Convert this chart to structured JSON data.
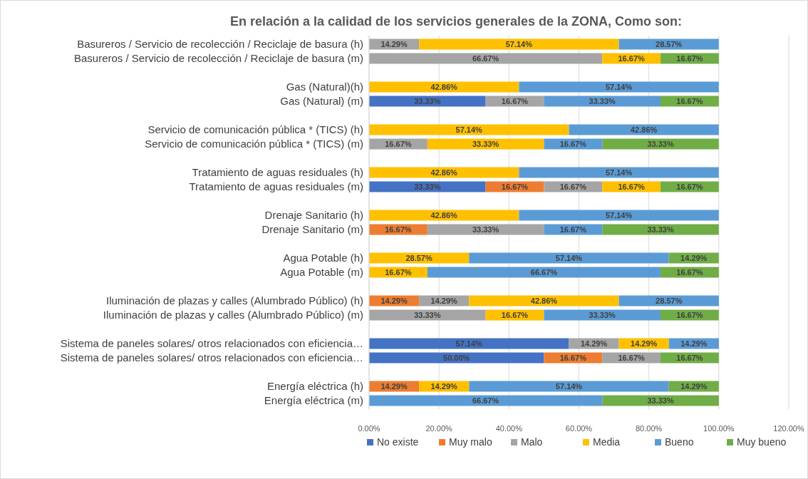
{
  "chart_data": {
    "type": "bar",
    "orientation": "horizontal",
    "stacked": true,
    "title": "En relación a la calidad de los servicios generales de la ZONA, Como son:",
    "categories": [
      "Basureros / Servicio de recolección / Reciclaje de basura (h)",
      "Basureros / Servicio de recolección / Reciclaje de basura (m)",
      null,
      "Gas (Natural)(h)",
      "Gas (Natural) (m)",
      null,
      "Servicio de comunicación pública  * (TICS) (h)",
      "Servicio de comunicación pública  * (TICS) (m)",
      null,
      "Tratamiento de aguas residuales (h)",
      "Tratamiento de aguas residuales (m)",
      null,
      "Drenaje Sanitario (h)",
      "Drenaje Sanitario (m)",
      null,
      "Agua Potable (h)",
      "Agua Potable (m)",
      null,
      "Iluminación de plazas y calles (Alumbrado Público) (h)",
      "Iluminación de plazas y calles (Alumbrado Público) (m)",
      null,
      "Sistema  de paneles solares/ otros relacionados con eficiencia…",
      "Sistema  de paneles solares/ otros relacionados con eficiencia…",
      null,
      "Energía eléctrica (h)",
      "Energía eléctrica (m)"
    ],
    "series": [
      {
        "name": "No existe",
        "color": "#4472c4",
        "values": [
          null,
          null,
          null,
          null,
          33.33,
          null,
          null,
          null,
          null,
          null,
          33.33,
          null,
          null,
          null,
          null,
          null,
          null,
          null,
          null,
          null,
          null,
          57.14,
          50.0,
          null,
          null,
          null
        ],
        "value_labels": [
          null,
          null,
          null,
          null,
          "33.33%",
          null,
          null,
          null,
          null,
          null,
          "33.33%",
          null,
          null,
          null,
          null,
          null,
          null,
          null,
          null,
          null,
          null,
          "57.14%",
          "50.00%",
          null,
          null,
          null
        ]
      },
      {
        "name": "Muy malo",
        "color": "#ed7d31",
        "values": [
          null,
          null,
          null,
          null,
          null,
          null,
          null,
          null,
          null,
          null,
          16.67,
          null,
          null,
          16.67,
          null,
          null,
          null,
          null,
          14.29,
          null,
          null,
          null,
          16.67,
          null,
          14.29,
          null
        ],
        "value_labels": [
          null,
          null,
          null,
          null,
          null,
          null,
          null,
          null,
          null,
          null,
          "16.67%",
          null,
          null,
          "16.67%",
          null,
          null,
          null,
          null,
          "14.29%",
          null,
          null,
          null,
          "16.67%",
          null,
          "14.29%",
          null
        ]
      },
      {
        "name": "Malo",
        "color": "#a5a5a5",
        "values": [
          14.29,
          66.67,
          null,
          null,
          16.67,
          null,
          null,
          16.67,
          null,
          null,
          16.67,
          null,
          null,
          33.33,
          null,
          null,
          null,
          null,
          14.29,
          33.33,
          null,
          14.29,
          16.67,
          null,
          null,
          null
        ],
        "value_labels": [
          "14.29%",
          "66.67%",
          null,
          null,
          "16.67%",
          null,
          null,
          "16.67%",
          null,
          null,
          "16.67%",
          null,
          null,
          "33.33%",
          null,
          null,
          null,
          null,
          "14.29%",
          "33.33%",
          null,
          "14.29%",
          "16.67%",
          null,
          null,
          null
        ]
      },
      {
        "name": "Media",
        "color": "#ffc000",
        "values": [
          57.14,
          16.67,
          null,
          42.86,
          null,
          null,
          57.14,
          33.33,
          null,
          42.86,
          16.67,
          null,
          42.86,
          null,
          null,
          28.57,
          16.67,
          null,
          42.86,
          16.67,
          null,
          14.29,
          null,
          null,
          14.29,
          null
        ],
        "value_labels": [
          "57.14%",
          "16.67%",
          null,
          "42.86%",
          null,
          null,
          "57.14%",
          "33.33%",
          null,
          "42.86%",
          "16.67%",
          null,
          "42.86%",
          null,
          null,
          "28.57%",
          "16.67%",
          null,
          "42.86%",
          "16.67%",
          null,
          "14.29%",
          null,
          null,
          "14.29%",
          null
        ]
      },
      {
        "name": "Bueno",
        "color": "#5b9bd5",
        "values": [
          28.57,
          null,
          null,
          57.14,
          33.33,
          null,
          42.86,
          16.67,
          null,
          57.14,
          null,
          null,
          57.14,
          16.67,
          null,
          57.14,
          66.67,
          null,
          28.57,
          33.33,
          null,
          14.29,
          null,
          null,
          57.14,
          66.67
        ],
        "value_labels": [
          "28.57%",
          null,
          null,
          "57.14%",
          "33.33%",
          null,
          "42.86%",
          "16.67%",
          null,
          "57.14%",
          null,
          null,
          "57.14%",
          "16.67%",
          null,
          "57.14%",
          "66.67%",
          null,
          "28.57%",
          "33.33%",
          null,
          "14.29%",
          null,
          null,
          "57.14%",
          "66.67%"
        ]
      },
      {
        "name": "Muy bueno",
        "color": "#70ad47",
        "values": [
          null,
          16.67,
          null,
          null,
          16.67,
          null,
          null,
          33.33,
          null,
          null,
          16.67,
          null,
          null,
          33.33,
          null,
          14.29,
          16.67,
          null,
          null,
          16.67,
          null,
          null,
          16.67,
          null,
          14.29,
          33.33
        ],
        "value_labels": [
          null,
          "16.67%",
          null,
          null,
          "16.67%",
          null,
          null,
          "33.33%",
          null,
          null,
          "16.67%",
          null,
          null,
          "33.33%",
          null,
          "14.29%",
          "16.67%",
          null,
          null,
          "16.67%",
          null,
          null,
          "16.67%",
          null,
          "14.29%",
          "33.33%"
        ]
      }
    ],
    "xlim": [
      0,
      120
    ],
    "xticks": [
      {
        "value": 0,
        "label": "0.00%"
      },
      {
        "value": 20,
        "label": "20.00%"
      },
      {
        "value": 40,
        "label": "40.00%"
      },
      {
        "value": 60,
        "label": "60.00%"
      },
      {
        "value": 80,
        "label": "80.00%"
      },
      {
        "value": 100,
        "label": "100.00%"
      },
      {
        "value": 120,
        "label": "120.00%"
      }
    ],
    "grid": "x",
    "legend": "bottom"
  }
}
